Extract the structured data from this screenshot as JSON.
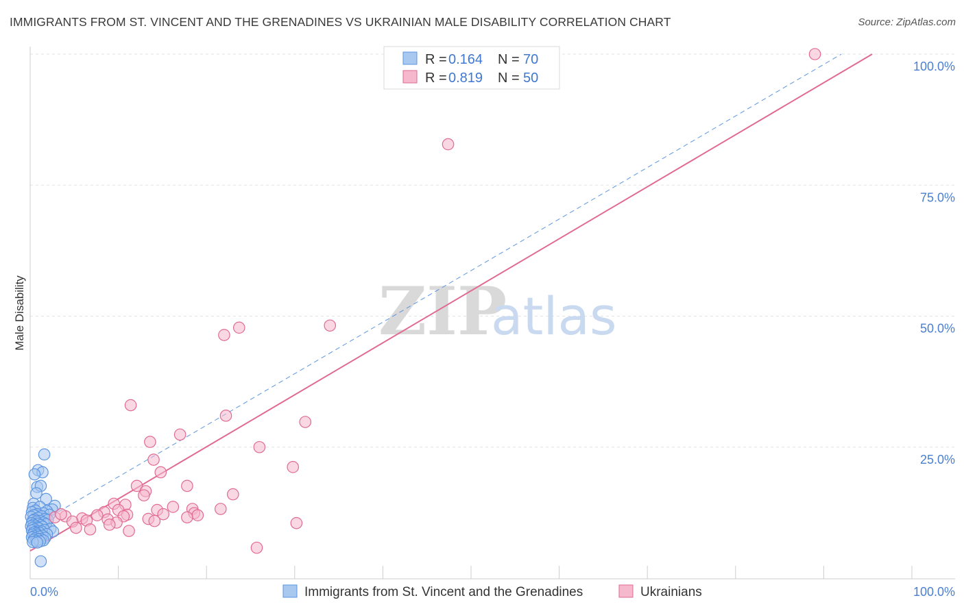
{
  "title": "IMMIGRANTS FROM ST. VINCENT AND THE GRENADINES VS UKRAINIAN MALE DISABILITY CORRELATION CHART",
  "source": "Source: ZipAtlas.com",
  "watermark": {
    "zip": "ZIP",
    "atlas": "atlas"
  },
  "colors": {
    "blue": "#5b95e0",
    "blue_fill": "#a9c8f0",
    "pink": "#e06a92",
    "pink_fill": "#f5b8cc",
    "tick_text": "#4a7fd0"
  },
  "legend": {
    "rows": [
      {
        "r_label": "R =",
        "r_value": "0.164",
        "n_label": "N =",
        "n_value": "70"
      },
      {
        "r_label": "R =",
        "r_value": "0.819",
        "n_label": "N =",
        "n_value": "50"
      }
    ]
  },
  "bottom_legend": [
    {
      "label": "Immigrants from St. Vincent and the Grenadines"
    },
    {
      "label": "Ukrainians"
    }
  ],
  "chart_data": {
    "type": "scatter",
    "title": "IMMIGRANTS FROM ST. VINCENT AND THE GRENADINES VS UKRAINIAN MALE DISABILITY CORRELATION CHART",
    "xlabel": "",
    "ylabel": "Male Disability",
    "xlim": [
      0,
      100
    ],
    "ylim": [
      0,
      100
    ],
    "x_tick_labels": [
      "0.0%",
      "100.0%"
    ],
    "y_ticks": [
      25,
      50,
      75,
      100
    ],
    "y_tick_labels": [
      "25.0%",
      "50.0%",
      "75.0%",
      "100.0%"
    ],
    "grid": true,
    "legend_position": "top-center",
    "series": [
      {
        "name": "Immigrants from St. Vincent and the Grenadines",
        "color": "#5b95e0",
        "trend": {
          "x": [
            0,
            92
          ],
          "y": [
            9.5,
            100
          ],
          "style": "dashed"
        },
        "points": [
          [
            1.6,
            23.6
          ],
          [
            0.9,
            20.6
          ],
          [
            1.4,
            20.2
          ],
          [
            0.5,
            19.8
          ],
          [
            0.8,
            17.4
          ],
          [
            1.2,
            17.6
          ],
          [
            0.7,
            16.2
          ],
          [
            1.8,
            15.1
          ],
          [
            2.8,
            13.8
          ],
          [
            0.4,
            14.2
          ],
          [
            0.3,
            13.4
          ],
          [
            1.1,
            13.6
          ],
          [
            2.5,
            13.1
          ],
          [
            0.6,
            12.9
          ],
          [
            1.9,
            12.8
          ],
          [
            0.2,
            12.6
          ],
          [
            1.5,
            12.4
          ],
          [
            0.8,
            12.2
          ],
          [
            2.2,
            12.1
          ],
          [
            0.4,
            12.0
          ],
          [
            1.3,
            11.8
          ],
          [
            0.1,
            11.7
          ],
          [
            0.9,
            11.5
          ],
          [
            1.7,
            11.3
          ],
          [
            0.5,
            11.2
          ],
          [
            2.0,
            11.1
          ],
          [
            0.3,
            11.0
          ],
          [
            1.1,
            10.9
          ],
          [
            0.7,
            10.8
          ],
          [
            1.5,
            10.6
          ],
          [
            0.2,
            10.5
          ],
          [
            0.9,
            10.4
          ],
          [
            1.8,
            10.3
          ],
          [
            0.4,
            10.2
          ],
          [
            1.2,
            10.1
          ],
          [
            0.6,
            10.0
          ],
          [
            0.1,
            9.9
          ],
          [
            1.4,
            9.8
          ],
          [
            0.8,
            9.7
          ],
          [
            0.3,
            9.6
          ],
          [
            1.0,
            9.5
          ],
          [
            2.3,
            9.4
          ],
          [
            0.5,
            9.3
          ],
          [
            1.6,
            9.2
          ],
          [
            0.2,
            9.1
          ],
          [
            0.9,
            9.0
          ],
          [
            1.3,
            8.9
          ],
          [
            0.6,
            8.8
          ],
          [
            2.6,
            8.9
          ],
          [
            0.4,
            8.7
          ],
          [
            1.1,
            8.6
          ],
          [
            0.7,
            8.5
          ],
          [
            1.9,
            8.4
          ],
          [
            0.3,
            8.3
          ],
          [
            0.8,
            8.2
          ],
          [
            1.4,
            8.1
          ],
          [
            0.5,
            8.0
          ],
          [
            1.0,
            7.9
          ],
          [
            0.2,
            7.8
          ],
          [
            1.7,
            7.7
          ],
          [
            0.6,
            7.6
          ],
          [
            1.2,
            7.5
          ],
          [
            0.9,
            7.4
          ],
          [
            0.4,
            7.3
          ],
          [
            1.5,
            7.2
          ],
          [
            0.7,
            7.1
          ],
          [
            1.1,
            7.0
          ],
          [
            0.3,
            6.9
          ],
          [
            0.8,
            6.8
          ],
          [
            1.2,
            3.2
          ]
        ]
      },
      {
        "name": "Ukrainians",
        "color": "#e06a92",
        "trend": {
          "x": [
            0,
            95.5
          ],
          "y": [
            5.2,
            100
          ],
          "style": "solid"
        },
        "points": [
          [
            89.0,
            100.0
          ],
          [
            47.4,
            82.8
          ],
          [
            34.0,
            48.2
          ],
          [
            22.0,
            46.4
          ],
          [
            23.7,
            47.8
          ],
          [
            11.4,
            33.0
          ],
          [
            22.2,
            31.0
          ],
          [
            31.2,
            29.8
          ],
          [
            13.6,
            26.0
          ],
          [
            17.0,
            27.4
          ],
          [
            26.0,
            25.0
          ],
          [
            14.0,
            22.6
          ],
          [
            29.8,
            21.2
          ],
          [
            14.8,
            20.2
          ],
          [
            12.1,
            17.6
          ],
          [
            17.8,
            17.6
          ],
          [
            9.5,
            14.2
          ],
          [
            10.8,
            14.0
          ],
          [
            13.1,
            16.6
          ],
          [
            23.0,
            16.0
          ],
          [
            12.9,
            15.8
          ],
          [
            21.6,
            13.2
          ],
          [
            16.2,
            13.6
          ],
          [
            18.4,
            13.2
          ],
          [
            10.0,
            13.0
          ],
          [
            14.4,
            13.0
          ],
          [
            18.6,
            12.4
          ],
          [
            8.4,
            12.6
          ],
          [
            15.1,
            12.2
          ],
          [
            11.0,
            12.1
          ],
          [
            19.0,
            12.0
          ],
          [
            7.6,
            12.0
          ],
          [
            10.6,
            11.8
          ],
          [
            4.0,
            11.8
          ],
          [
            2.8,
            11.6
          ],
          [
            5.9,
            11.4
          ],
          [
            17.8,
            11.6
          ],
          [
            13.4,
            11.3
          ],
          [
            8.8,
            11.2
          ],
          [
            6.4,
            11.0
          ],
          [
            14.1,
            10.9
          ],
          [
            4.8,
            10.8
          ],
          [
            30.2,
            10.5
          ],
          [
            9.8,
            10.6
          ],
          [
            5.2,
            9.6
          ],
          [
            11.2,
            9.0
          ],
          [
            25.7,
            5.8
          ],
          [
            9.0,
            10.2
          ],
          [
            3.5,
            12.2
          ],
          [
            6.8,
            9.3
          ]
        ]
      }
    ]
  }
}
